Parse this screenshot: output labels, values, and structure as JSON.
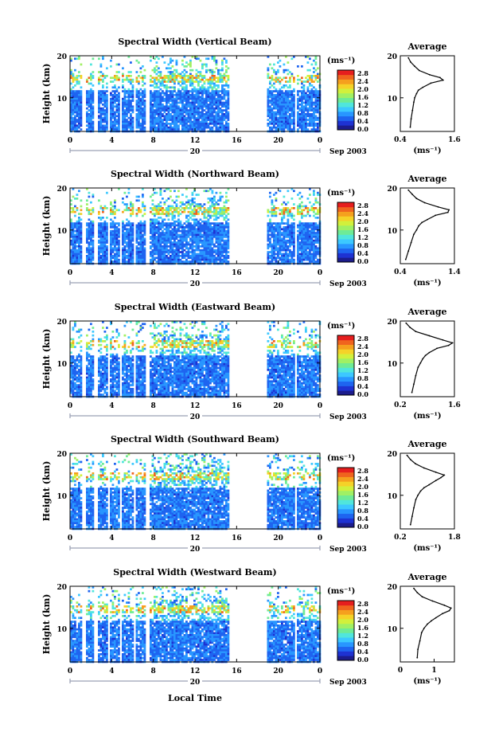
{
  "figure": {
    "xlabel": "Local Time",
    "date_label": "Sep 2003",
    "day_label": "20",
    "colorbar_unit": "(ms⁻¹)",
    "profile_unit": "(ms⁻¹)",
    "profile_title": "Average",
    "ylabel": "Height (km)"
  },
  "colors": {
    "scale": [
      "#1c1c8c",
      "#1e32d2",
      "#1e64f0",
      "#2896ff",
      "#3cc8ff",
      "#50e6dc",
      "#6eeb96",
      "#a0f064",
      "#d2f03c",
      "#f5d228",
      "#f5a01e",
      "#f0641e",
      "#e61e1e"
    ],
    "background": "#ffffff",
    "marker": "#9aa0b4"
  },
  "chart_data": [
    {
      "type": "heatmap",
      "title": "Spectral Width (Vertical Beam)",
      "x_ticks": [
        "0",
        "4",
        "8",
        "12",
        "16",
        "20",
        "0"
      ],
      "y_ticks": [
        "20",
        "10"
      ],
      "xlim": [
        0,
        24
      ],
      "ylim": [
        2,
        20
      ],
      "colorbar_ticks": [
        "2.8",
        "2.4",
        "2.0",
        "1.6",
        "1.2",
        "0.8",
        "0.4",
        "0.0"
      ],
      "colorbar_range": [
        0,
        3.0
      ],
      "data_gap_hours": [
        15.2,
        18.8
      ],
      "profile": {
        "xlim": [
          0.4,
          1.6
        ],
        "x_ticks": [
          "0.4",
          "1.6"
        ],
        "y_ticks": [
          "20",
          "10"
        ],
        "height_km": [
          3,
          5,
          7,
          9,
          10,
          11,
          11.8,
          12.5,
          13.5,
          14.2,
          14.8,
          15.5,
          16.5,
          17.5,
          18.5,
          19.5
        ],
        "values": [
          0.62,
          0.64,
          0.67,
          0.7,
          0.72,
          0.76,
          0.8,
          0.9,
          1.08,
          1.35,
          1.28,
          1.05,
          0.82,
          0.72,
          0.63,
          0.58
        ]
      }
    },
    {
      "type": "heatmap",
      "title": "Spectral Width (Northward Beam)",
      "x_ticks": [
        "0",
        "4",
        "8",
        "12",
        "16",
        "20",
        "0"
      ],
      "y_ticks": [
        "20",
        "10"
      ],
      "xlim": [
        0,
        24
      ],
      "ylim": [
        2,
        20
      ],
      "colorbar_ticks": [
        "2.8",
        "2.4",
        "2.0",
        "1.6",
        "1.2",
        "0.8",
        "0.4",
        "0.0"
      ],
      "colorbar_range": [
        0,
        3.0
      ],
      "data_gap_hours": [
        15.2,
        18.8
      ],
      "profile": {
        "xlim": [
          0.4,
          1.4
        ],
        "x_ticks": [
          "0.4",
          "1.4"
        ],
        "y_ticks": [
          "20",
          "10"
        ],
        "height_km": [
          3,
          5,
          7,
          9,
          10,
          11,
          11.8,
          12.5,
          13.5,
          14.2,
          14.8,
          15.5,
          16.5,
          17.5,
          18.5,
          19.5
        ],
        "values": [
          0.5,
          0.55,
          0.6,
          0.65,
          0.7,
          0.74,
          0.8,
          0.9,
          1.05,
          1.28,
          1.3,
          1.1,
          0.85,
          0.7,
          0.62,
          0.55
        ]
      }
    },
    {
      "type": "heatmap",
      "title": "Spectral Width (Eastward Beam)",
      "x_ticks": [
        "0",
        "4",
        "8",
        "12",
        "16",
        "20",
        "0"
      ],
      "y_ticks": [
        "20",
        "10"
      ],
      "xlim": [
        0,
        24
      ],
      "ylim": [
        2,
        20
      ],
      "colorbar_ticks": [
        "2.8",
        "2.4",
        "2.0",
        "1.6",
        "1.2",
        "0.8",
        "0.4",
        "0.0"
      ],
      "colorbar_range": [
        0,
        3.0
      ],
      "data_gap_hours": [
        15.2,
        18.8
      ],
      "profile": {
        "xlim": [
          0.2,
          1.6
        ],
        "x_ticks": [
          "0.2",
          "1.6"
        ],
        "y_ticks": [
          "20",
          "10"
        ],
        "height_km": [
          3,
          5,
          7,
          9,
          10,
          11,
          11.8,
          12.5,
          13.5,
          14.2,
          14.8,
          15.5,
          16.5,
          17.5,
          18.5,
          19.5
        ],
        "values": [
          0.5,
          0.55,
          0.6,
          0.66,
          0.72,
          0.78,
          0.85,
          0.95,
          1.15,
          1.45,
          1.55,
          1.3,
          0.95,
          0.6,
          0.45,
          0.35
        ]
      }
    },
    {
      "type": "heatmap",
      "title": "Spectral Width (Southward Beam)",
      "x_ticks": [
        "0",
        "4",
        "8",
        "12",
        "16",
        "20",
        "0"
      ],
      "y_ticks": [
        "20",
        "10"
      ],
      "xlim": [
        0,
        24
      ],
      "ylim": [
        2,
        20
      ],
      "colorbar_ticks": [
        "2.8",
        "2.4",
        "2.0",
        "1.6",
        "1.2",
        "0.8",
        "0.4",
        "0.0"
      ],
      "colorbar_range": [
        0,
        3.0
      ],
      "data_gap_hours": [
        15.2,
        18.8
      ],
      "profile": {
        "xlim": [
          0.2,
          1.8
        ],
        "x_ticks": [
          "0.2",
          "1.8"
        ],
        "y_ticks": [
          "20",
          "10"
        ],
        "height_km": [
          3,
          5,
          7,
          9,
          10,
          11,
          11.8,
          12.5,
          13.5,
          14.2,
          14.8,
          15.5,
          16.5,
          17.5,
          18.5,
          19.5
        ],
        "values": [
          0.5,
          0.55,
          0.6,
          0.66,
          0.72,
          0.8,
          0.9,
          1.05,
          1.25,
          1.4,
          1.5,
          1.25,
          0.9,
          0.65,
          0.5,
          0.4
        ]
      }
    },
    {
      "type": "heatmap",
      "title": "Spectral Width (Westward Beam)",
      "x_ticks": [
        "0",
        "4",
        "8",
        "12",
        "16",
        "20",
        "0"
      ],
      "y_ticks": [
        "20",
        "10"
      ],
      "xlim": [
        0,
        24
      ],
      "ylim": [
        2,
        20
      ],
      "colorbar_ticks": [
        "2.8",
        "2.4",
        "2.0",
        "1.6",
        "1.2",
        "0.8",
        "0.4",
        "0.0"
      ],
      "colorbar_range": [
        0,
        3.0
      ],
      "data_gap_hours": [
        15.2,
        18.8
      ],
      "profile": {
        "xlim": [
          0,
          1.6
        ],
        "x_ticks": [
          "0",
          "1"
        ],
        "y_ticks": [
          "20",
          "10"
        ],
        "height_km": [
          3,
          5,
          7,
          9,
          10,
          11,
          11.8,
          12.5,
          13.5,
          14.2,
          14.8,
          15.5,
          16.5,
          17.5,
          18.5,
          19.5
        ],
        "values": [
          0.5,
          0.52,
          0.58,
          0.63,
          0.7,
          0.8,
          0.92,
          1.05,
          1.25,
          1.45,
          1.5,
          1.3,
          0.95,
          0.65,
          0.5,
          0.4
        ]
      }
    }
  ]
}
